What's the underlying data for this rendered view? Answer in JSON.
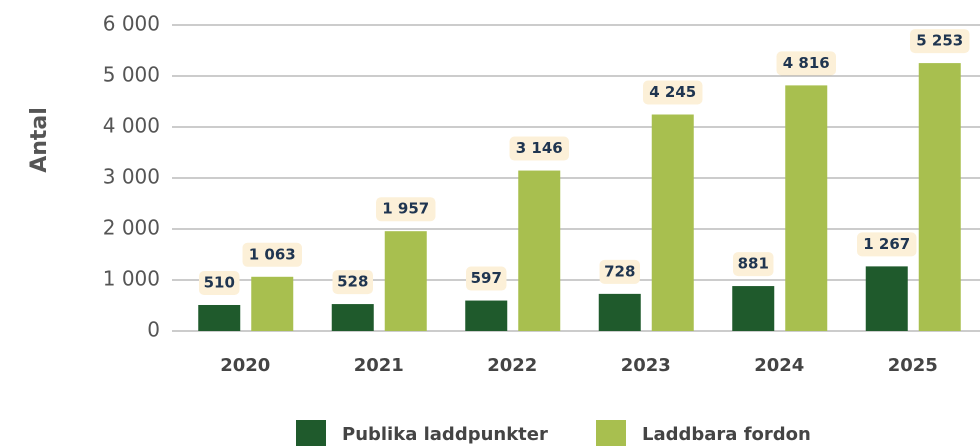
{
  "chart_data": {
    "type": "bar",
    "y_label": "Antal",
    "categories": [
      "2020",
      "2021",
      "2022",
      "2023",
      "2024",
      "2025"
    ],
    "series": [
      {
        "name": "Publika laddpunkter",
        "color": "#1f5a2c",
        "values": [
          510,
          528,
          597,
          728,
          881,
          1267
        ],
        "value_labels": [
          "510",
          "528",
          "597",
          "728",
          "881",
          "1 267"
        ]
      },
      {
        "name": "Laddbara fordon",
        "color": "#a8bf4f",
        "values": [
          1063,
          1957,
          3146,
          4245,
          4816,
          5253
        ],
        "value_labels": [
          "1 063",
          "1 957",
          "3 146",
          "4 245",
          "4 816",
          "5 253"
        ]
      }
    ],
    "ylim": [
      0,
      6000
    ],
    "yticks": [
      {
        "value": 0,
        "label": "0"
      },
      {
        "value": 1000,
        "label": "1 000"
      },
      {
        "value": 2000,
        "label": "2 000"
      },
      {
        "value": 3000,
        "label": "3 000"
      },
      {
        "value": 4000,
        "label": "4 000"
      },
      {
        "value": 5000,
        "label": "5 000"
      },
      {
        "value": 6000,
        "label": "6 000"
      }
    ],
    "grid": true,
    "legend": "bottom"
  }
}
